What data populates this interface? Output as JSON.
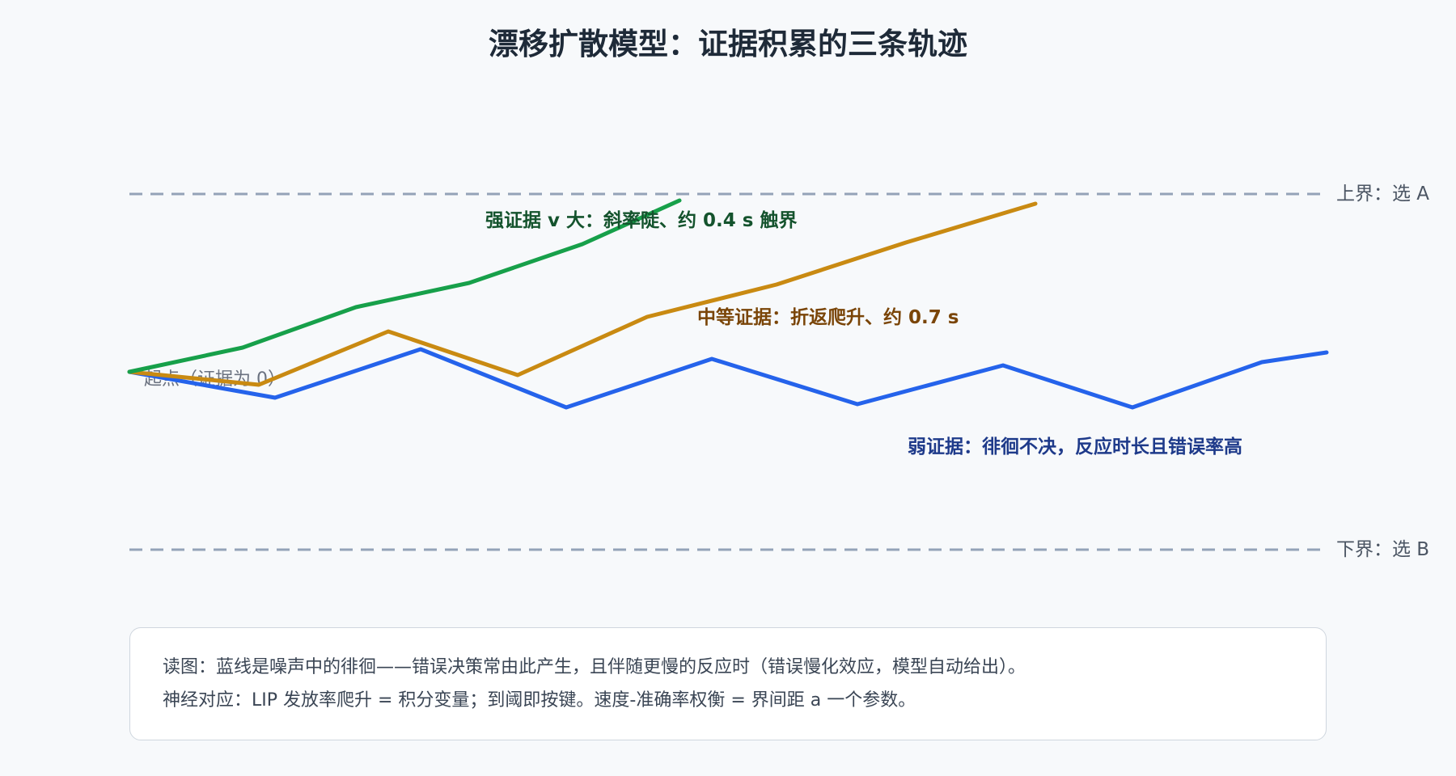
{
  "title": "漂移扩散模型：证据积累的三条轨迹",
  "colors": {
    "strong": "#17a04a",
    "strong_label": "#14532d",
    "medium": "#c98a12",
    "medium_label": "#7a4508",
    "weak": "#2563eb",
    "weak_label": "#1e3a8a",
    "bound": "#94a3b8",
    "bound_label": "#4b5563",
    "start_label": "#6b7280"
  },
  "labels": {
    "upper_bound": "上界：选 A",
    "lower_bound": "下界：选 B",
    "start": "起点（证据为 0）",
    "strong": "强证据 v 大：斜率陡、约 0.4 s 触界",
    "medium": "中等证据：折返爬升、约 0.7 s",
    "weak": "弱证据：徘徊不决，反应时长且错误率高"
  },
  "note": {
    "line1": "读图：蓝线是噪声中的徘徊——错误决策常由此产生，且伴随更慢的反应时（错误慢化效应，模型自动给出）。",
    "line2": "神经对应：LIP 发放率爬升 = 积分变量；到阈即按键。速度-准确率权衡 = 界间距 a 一个参数。"
  }
}
